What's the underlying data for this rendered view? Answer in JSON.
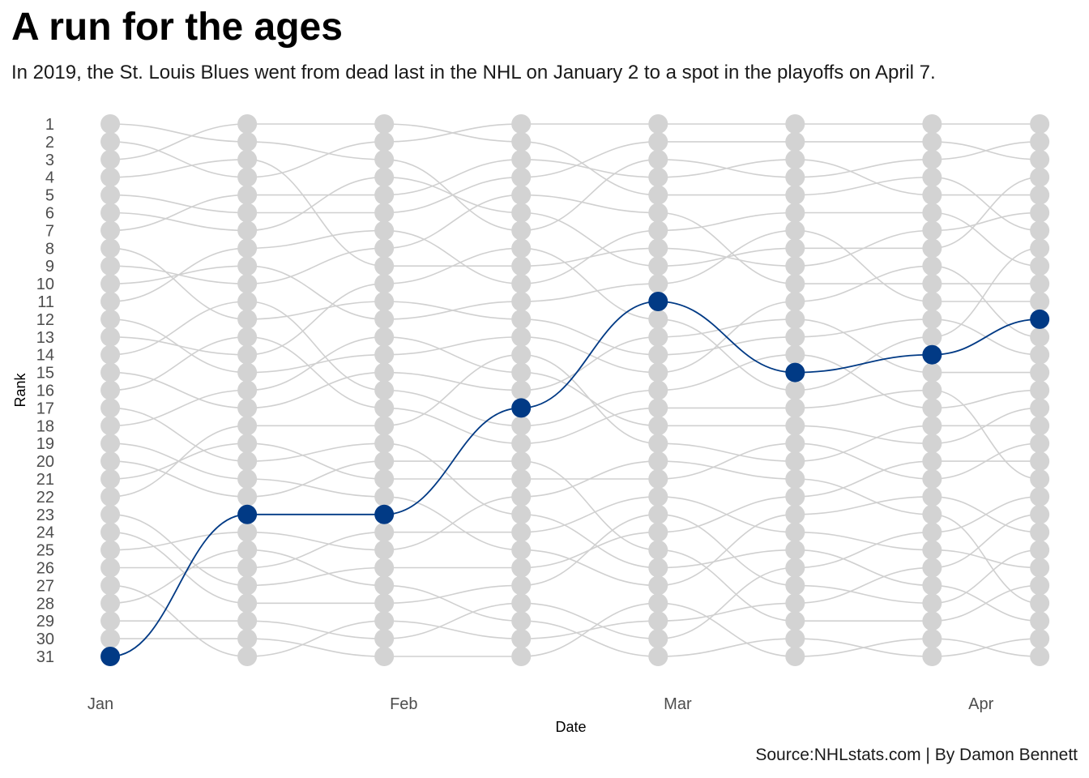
{
  "title": "A run for the ages",
  "subtitle": "In 2019, the St. Louis Blues went from dead last in the NHL on January 2 to a spot in the playoffs on April 7.",
  "caption": "Source:NHLstats.com | By Damon Bennett",
  "colors": {
    "highlight": "#013a85",
    "background_lines": "#d0d0d0",
    "background_points": "#d3d3d3"
  },
  "chart_data": {
    "type": "line",
    "subtype": "bump",
    "xlabel": "Date",
    "ylabel": "Rank",
    "x_ticks": [
      {
        "label": "Jan",
        "date": "2019-01-01"
      },
      {
        "label": "Feb",
        "date": "2019-02-01"
      },
      {
        "label": "Mar",
        "date": "2019-03-01"
      },
      {
        "label": "Apr",
        "date": "2019-04-01"
      }
    ],
    "x_range": [
      "2019-01-01",
      "2019-04-05"
    ],
    "y_ticks": [
      1,
      2,
      3,
      4,
      5,
      6,
      7,
      8,
      9,
      10,
      11,
      12,
      13,
      14,
      15,
      16,
      17,
      18,
      19,
      20,
      21,
      22,
      23,
      24,
      25,
      26,
      27,
      28,
      29,
      30,
      31
    ],
    "ylim": [
      31,
      1
    ],
    "y_reversed": true,
    "x": [
      "2019-01-02",
      "2019-01-16",
      "2019-01-30",
      "2019-02-13",
      "2019-02-27",
      "2019-03-13",
      "2019-03-27",
      "2019-04-07"
    ],
    "highlight_series": {
      "ranks": [
        31,
        23,
        23,
        17,
        11,
        15,
        14,
        12
      ]
    },
    "other_teams_per_date": 30,
    "grid": false,
    "legend": "none"
  }
}
